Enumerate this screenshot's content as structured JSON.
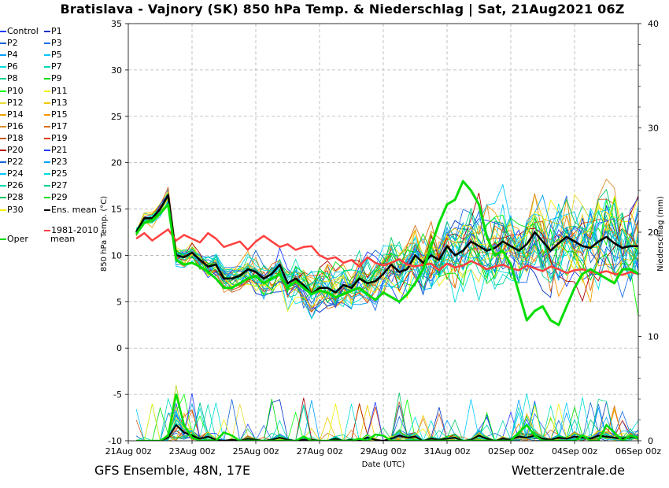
{
  "chart_data": {
    "type": "line",
    "title": "Bratislava - Vajnory  (SK)  850 hPa Temp. & Niederschlag | Sat, 21Aug2021 06Z",
    "xlabel": "Date (UTC)",
    "ylabel": "850 hPa Temp. (°C)",
    "y2label": "Niederschlag (mm)",
    "ylim": [
      -10,
      35
    ],
    "y2lim": [
      0,
      40
    ],
    "yticks": [
      "35",
      "30",
      "25",
      "20",
      "15",
      "10",
      "5",
      "0",
      "-5",
      "-10"
    ],
    "y2ticks": [
      "40",
      "30",
      "20",
      "10",
      "0"
    ],
    "xticks": [
      "21Aug 00z",
      "23Aug 00z",
      "25Aug 00z",
      "27Aug 00z",
      "29Aug 00z",
      "31Aug 00z",
      "02Sep 00z",
      "04Sep 00z",
      "06Sep 00z"
    ],
    "x_hours_start": 0,
    "x_hours_end": 384,
    "ensemble_hours": [
      6,
      12,
      18,
      24,
      30,
      36,
      42,
      48,
      54,
      60,
      66,
      72,
      78,
      84,
      90,
      96,
      102,
      108,
      114,
      120,
      126,
      132,
      138,
      144,
      150,
      156,
      162,
      168,
      174,
      180,
      186,
      192,
      198,
      204,
      210,
      216,
      222,
      228,
      234,
      240,
      246,
      252,
      258,
      264,
      270,
      276,
      282,
      288,
      294,
      300,
      306,
      312,
      318,
      324,
      330,
      336,
      342,
      348,
      354,
      360,
      366,
      372,
      378,
      384
    ],
    "series": [
      {
        "name": "Ens. mean",
        "color": "#000000",
        "width": 2.5,
        "values": [
          12.5,
          14,
          14,
          15,
          16.5,
          10,
          9.8,
          10.3,
          9.5,
          8.8,
          9,
          7.5,
          7.5,
          7.8,
          8.5,
          8.2,
          7.5,
          8,
          9,
          7,
          7.5,
          6.8,
          5.8,
          6.5,
          6.5,
          6,
          6.8,
          6.5,
          7.5,
          7,
          7.2,
          8,
          9,
          8.2,
          8.5,
          10,
          9.2,
          10,
          9.5,
          11,
          10,
          10.5,
          11.5,
          11,
          10.5,
          10.8,
          11.5,
          11,
          10.5,
          11.2,
          12.5,
          11.5,
          10.5,
          11.3,
          12,
          11.5,
          11,
          10.8,
          11.5,
          12,
          11.3,
          10.8,
          11,
          11
        ]
      },
      {
        "name": "1981-2010 mean",
        "color": "#ff4040",
        "width": 2.5,
        "values": [
          11.8,
          12.4,
          11.6,
          12.2,
          12.8,
          11.6,
          12.2,
          11.8,
          11.4,
          12.4,
          11.8,
          10.9,
          11.2,
          11.5,
          10.6,
          11.5,
          12.1,
          11.5,
          10.9,
          11.2,
          10.6,
          10.9,
          11,
          10,
          9.6,
          9.8,
          9.2,
          9.5,
          8.8,
          9.8,
          9.2,
          8.9,
          9.2,
          9.6,
          9,
          8.8,
          9,
          9.1,
          8.4,
          9.1,
          8.7,
          8.9,
          9.4,
          9,
          8.5,
          8.8,
          9,
          8.6,
          8.4,
          8.9,
          8.6,
          8.3,
          8.8,
          8.5,
          8.1,
          8.4,
          8.5,
          8.2,
          8.1,
          8.3,
          8,
          7.9,
          8.2,
          8
        ]
      },
      {
        "name": "Oper",
        "color": "#00dd00",
        "width": 3,
        "values": [
          12.3,
          13.5,
          13.8,
          14.5,
          15.5,
          9.5,
          9,
          9.2,
          8.8,
          8.2,
          7.5,
          6.5,
          6.5,
          7,
          7.5,
          7.8,
          7,
          7.5,
          8,
          6.5,
          7.2,
          6.5,
          5.8,
          6.2,
          6,
          5.5,
          5.8,
          6.2,
          6.5,
          5.8,
          5.2,
          6,
          5.5,
          5,
          5.8,
          7,
          8.5,
          11,
          13.5,
          15.5,
          16,
          18,
          17,
          15.5,
          12,
          10,
          10.5,
          9,
          6,
          3,
          4,
          4.5,
          3,
          2.5,
          4.5,
          6.5,
          8,
          8.5,
          8,
          7.5,
          7,
          8.5,
          8.5,
          8
        ]
      }
    ],
    "precip_mean_mm": [
      0,
      0,
      0,
      0,
      0.3,
      1.5,
      0.8,
      0.5,
      0.2,
      0.4,
      0.1,
      0,
      0.1,
      0,
      0.2,
      0.1,
      0,
      0.1,
      0.3,
      0.1,
      0,
      0.1,
      0.1,
      0,
      0,
      0.2,
      0,
      0.1,
      0,
      0.3,
      0.1,
      0,
      0.2,
      0.5,
      0.3,
      0.4,
      0,
      0.2,
      0.1,
      0.2,
      0.3,
      0,
      0.1,
      0.5,
      0.2,
      0,
      0.2,
      0.1,
      0.4,
      0.3,
      0.5,
      0.2,
      0.1,
      0.3,
      0.2,
      0.4,
      0.3,
      0.2,
      0.5,
      0.4,
      0.3,
      0.2,
      0.4,
      0.3
    ],
    "precip_oper_mm": [
      0,
      0,
      0,
      0,
      0.5,
      4.5,
      1.5,
      0.3,
      0,
      0,
      0,
      0.8,
      0.5,
      0,
      0,
      0,
      0,
      0,
      0,
      0,
      0,
      0.4,
      0,
      0,
      0,
      0,
      0,
      0,
      0.2,
      0,
      0.6,
      0.5,
      0,
      0,
      0,
      0,
      0,
      0,
      0,
      0,
      0,
      0,
      0,
      0,
      0,
      0,
      0,
      0,
      0.8,
      1.5,
      0.5,
      0,
      0,
      0,
      0,
      0,
      0.5,
      0,
      0,
      1.5,
      0.8,
      0,
      0.5,
      0.3
    ]
  },
  "legend": {
    "items": [
      {
        "label": "Control",
        "color": "#1e3cff"
      },
      {
        "label": "P1",
        "color": "#0032c8"
      },
      {
        "label": "P2",
        "color": "#1464d2"
      },
      {
        "label": "P3",
        "color": "#1e6eeb"
      },
      {
        "label": "P4",
        "color": "#00a0ff"
      },
      {
        "label": "P5",
        "color": "#00c8ff"
      },
      {
        "label": "P6",
        "color": "#00dcdc"
      },
      {
        "label": "P7",
        "color": "#00dcb4"
      },
      {
        "label": "P8",
        "color": "#00d28c"
      },
      {
        "label": "P9",
        "color": "#00dc00"
      },
      {
        "label": "P10",
        "color": "#00ff00"
      },
      {
        "label": "P11",
        "color": "#f0f000"
      },
      {
        "label": "P12",
        "color": "#e6dc32"
      },
      {
        "label": "P13",
        "color": "#f0c800"
      },
      {
        "label": "P14",
        "color": "#f0a000"
      },
      {
        "label": "P15",
        "color": "#fa9600"
      },
      {
        "label": "P16",
        "color": "#dc8c28"
      },
      {
        "label": "P17",
        "color": "#dc6e14"
      },
      {
        "label": "P18",
        "color": "#c85a1e"
      },
      {
        "label": "P19",
        "color": "#dc3c00"
      },
      {
        "label": "P20",
        "color": "#b40000"
      },
      {
        "label": "P21",
        "color": "#1e3cff"
      },
      {
        "label": "P22",
        "color": "#1464d2"
      },
      {
        "label": "P23",
        "color": "#00a0ff"
      },
      {
        "label": "P24",
        "color": "#00c8ff"
      },
      {
        "label": "P25",
        "color": "#00dcdc"
      },
      {
        "label": "P26",
        "color": "#00dcb4"
      },
      {
        "label": "P27",
        "color": "#00d28c"
      },
      {
        "label": "P28",
        "color": "#00c864"
      },
      {
        "label": "P29",
        "color": "#00dc00"
      },
      {
        "label": "P30",
        "color": "#f0f000"
      },
      {
        "label": "Ens. mean",
        "color": "#000000"
      },
      {
        "label": "Oper",
        "color": "#00dd00"
      },
      {
        "label": "1981-2010",
        "color": "#ff4040"
      },
      {
        "label": "mean",
        "color": ""
      }
    ]
  },
  "footer": {
    "left": "GFS Ensemble, 48N, 17E",
    "right": "Wetterzentrale.de"
  }
}
